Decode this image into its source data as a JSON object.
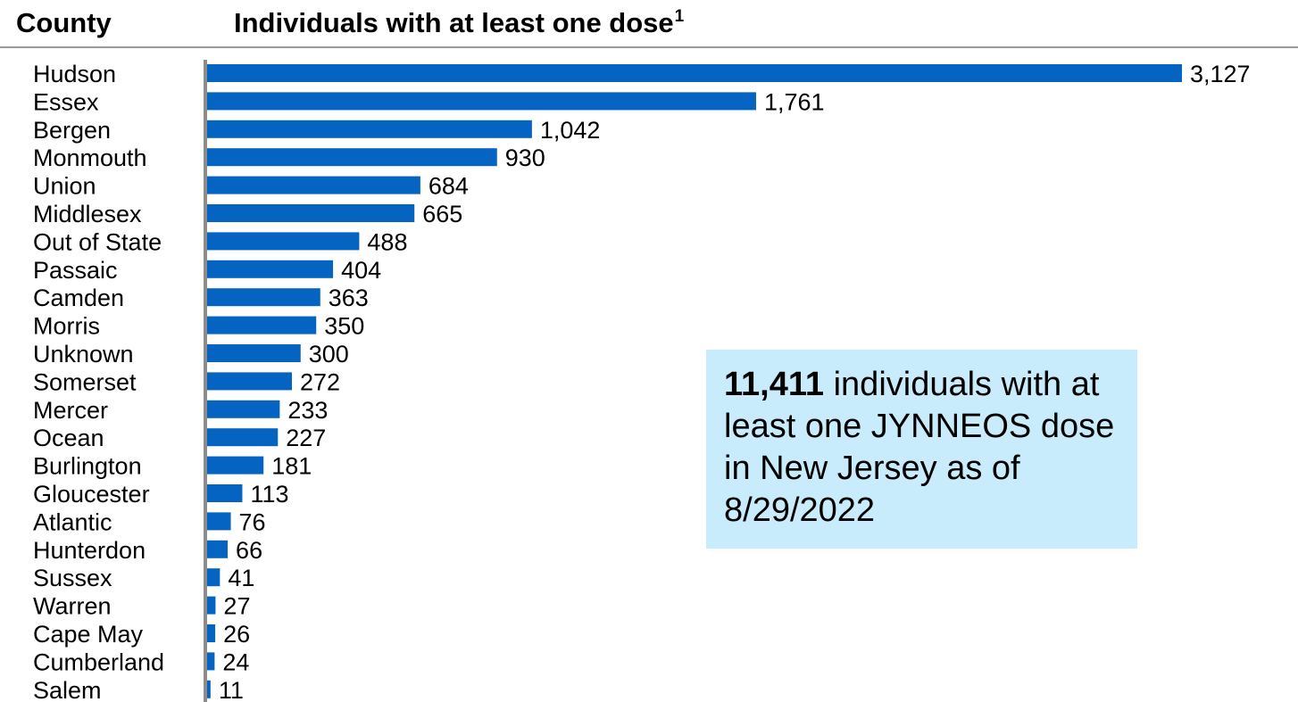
{
  "header": {
    "county_label": "County",
    "metric_label": "Individuals with at least one dose",
    "metric_footnote": "1"
  },
  "callout": {
    "number": "11,411",
    "text": " individuals with at least one JYNNEOS dose in New Jersey as of 8/29/2022"
  },
  "colors": {
    "bar": "#0563c1",
    "axis": "#8c8c8c",
    "callout_bg": "#c9ecfc"
  },
  "chart_data": {
    "type": "bar",
    "orientation": "horizontal",
    "categories": [
      "Hudson",
      "Essex",
      "Bergen",
      "Monmouth",
      "Union",
      "Middlesex",
      "Out of State",
      "Passaic",
      "Camden",
      "Morris",
      "Unknown",
      "Somerset",
      "Mercer",
      "Ocean",
      "Burlington",
      "Gloucester",
      "Atlantic",
      "Hunterdon",
      "Sussex",
      "Warren",
      "Cape May",
      "Cumberland",
      "Salem"
    ],
    "values": [
      3127,
      1761,
      1042,
      930,
      684,
      665,
      488,
      404,
      363,
      350,
      300,
      272,
      233,
      227,
      181,
      113,
      76,
      66,
      41,
      27,
      26,
      24,
      11
    ],
    "value_labels": [
      "3,127",
      "1,761",
      "1,042",
      "930",
      "684",
      "665",
      "488",
      "404",
      "363",
      "350",
      "300",
      "272",
      "233",
      "227",
      "181",
      "113",
      "76",
      "66",
      "41",
      "27",
      "26",
      "24",
      "11"
    ],
    "xlim": [
      0,
      3127
    ],
    "grid": false,
    "legend": "none"
  }
}
